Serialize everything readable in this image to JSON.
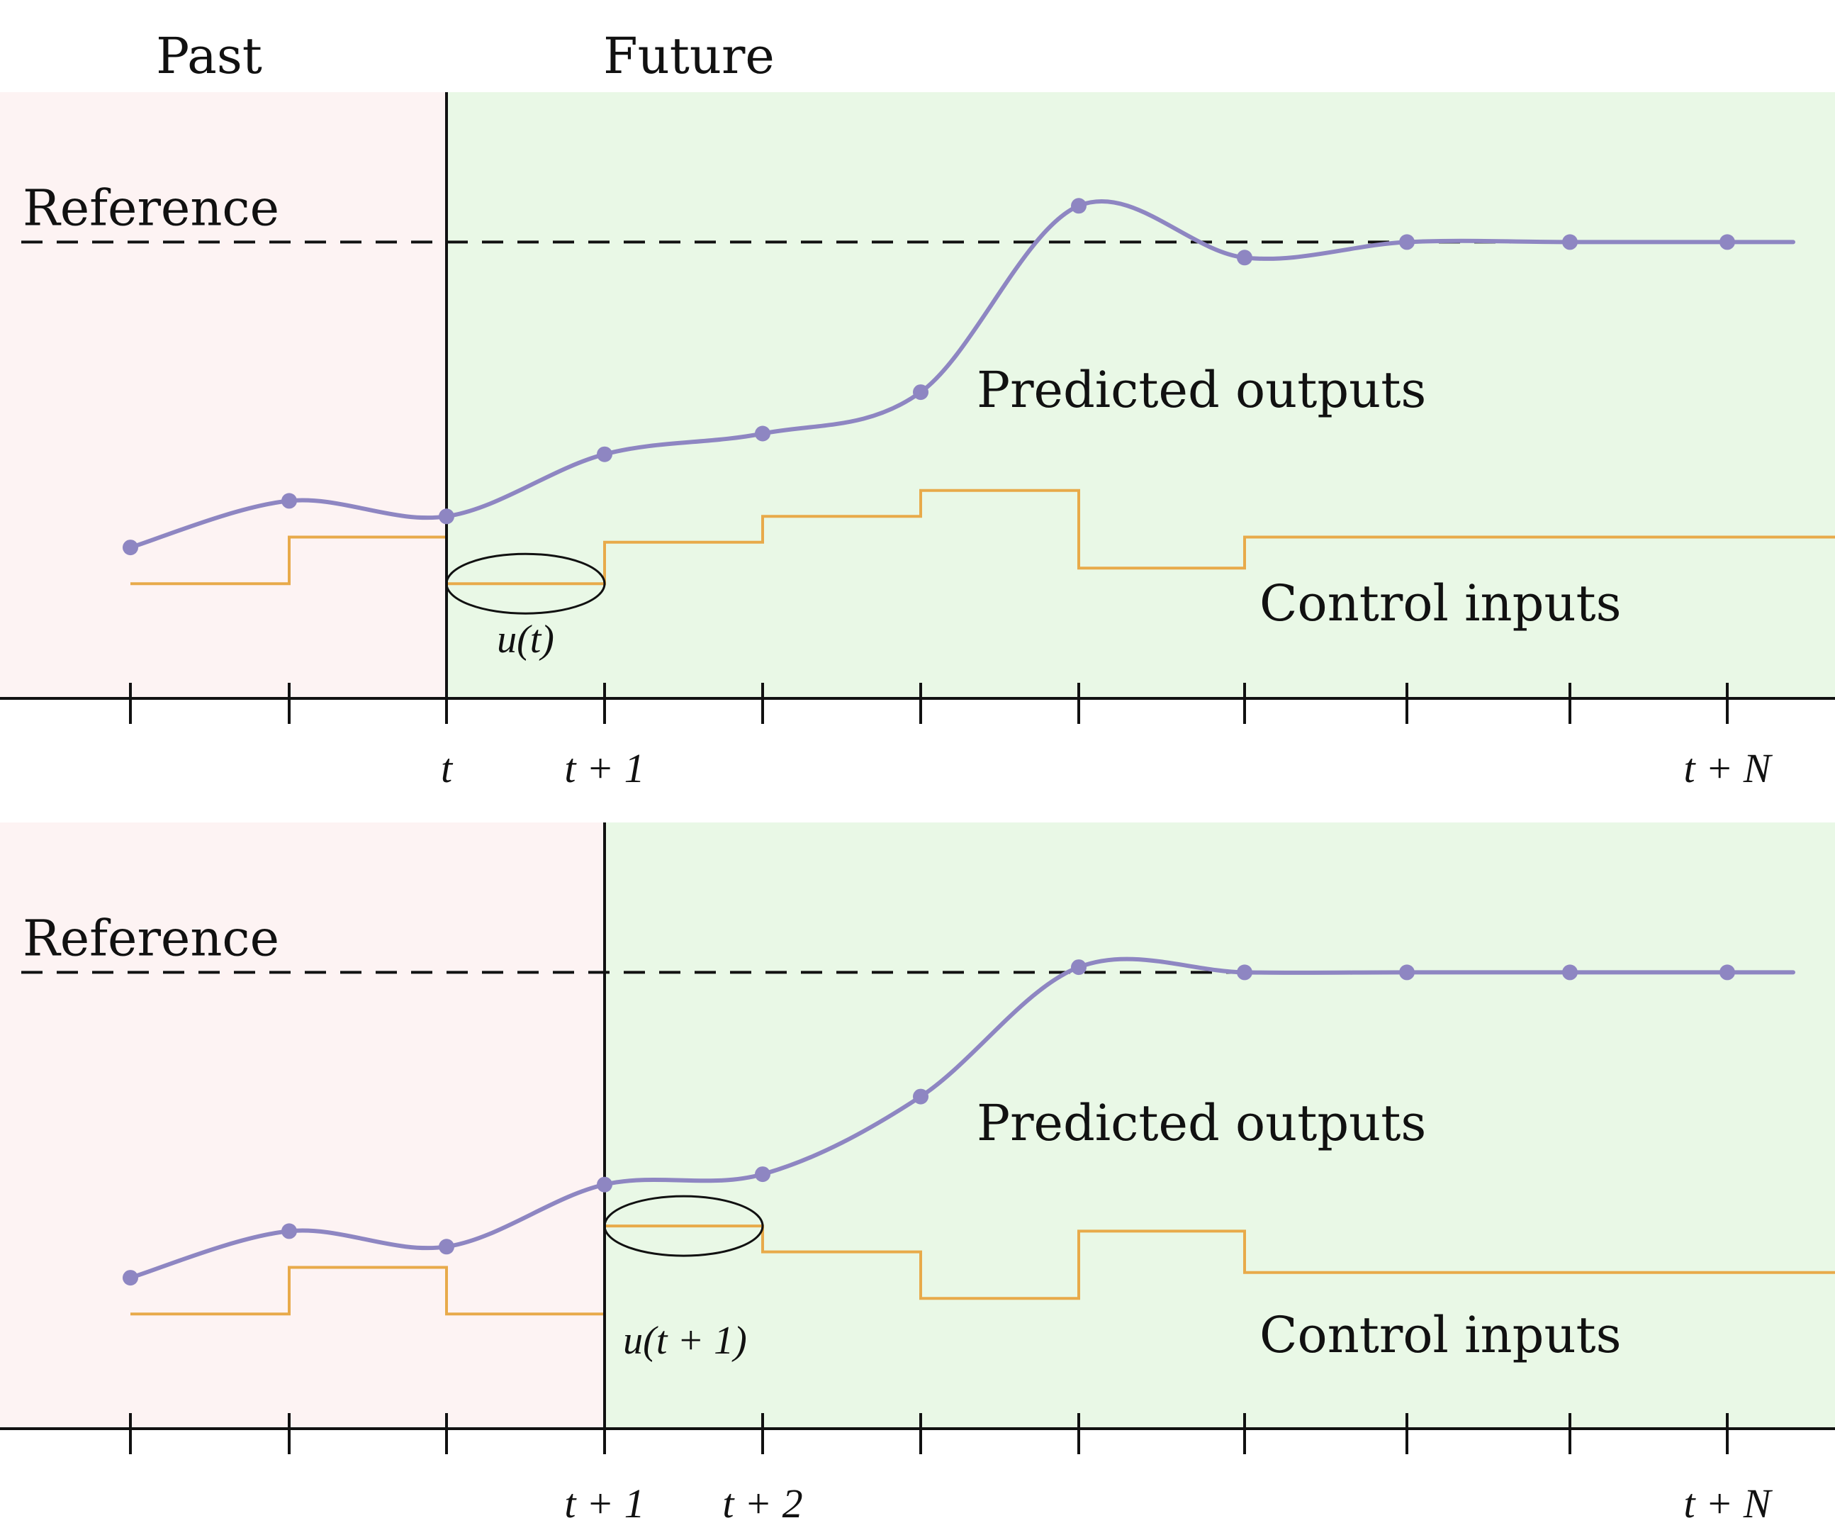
{
  "headings": {
    "past": "Past",
    "future": "Future"
  },
  "colors": {
    "past_bg": "#fdf3f3",
    "future_bg": "#e9f8e6",
    "output": "#8e86c2",
    "input": "#e8aa4a",
    "axis": "#111111"
  },
  "panels": [
    {
      "reference_label": "Reference",
      "outputs_label": "Predicted outputs",
      "inputs_label": "Control inputs",
      "current_step": 2,
      "control_label": "u(t)",
      "tick_labels": [
        {
          "step": 2,
          "text": "t"
        },
        {
          "step": 3,
          "text": "t + 1"
        },
        {
          "step": 10,
          "text": "t + N"
        }
      ],
      "reference_level": 0.82,
      "outputs": [
        0.23,
        0.32,
        0.29,
        0.41,
        0.45,
        0.53,
        0.89,
        0.79,
        0.82,
        0.82,
        0.82
      ],
      "output_tail": 0.82,
      "inputs": [
        0.16,
        0.25,
        0.16,
        0.24,
        0.29,
        0.34,
        0.19,
        0.25,
        0.25,
        0.25,
        0.25
      ]
    },
    {
      "reference_label": "Reference",
      "outputs_label": "Predicted outputs",
      "inputs_label": "Control inputs",
      "current_step": 3,
      "control_label": "u(t + 1)",
      "tick_labels": [
        {
          "step": 3,
          "text": "t + 1"
        },
        {
          "step": 4,
          "text": "t + 2"
        },
        {
          "step": 10,
          "text": "t + N"
        }
      ],
      "reference_level": 0.82,
      "outputs": [
        0.23,
        0.32,
        0.29,
        0.41,
        0.43,
        0.58,
        0.83,
        0.82,
        0.82,
        0.82,
        0.82
      ],
      "output_tail": 0.82,
      "inputs": [
        0.16,
        0.25,
        0.16,
        0.33,
        0.28,
        0.19,
        0.32,
        0.24,
        0.24,
        0.24,
        0.24
      ]
    }
  ]
}
